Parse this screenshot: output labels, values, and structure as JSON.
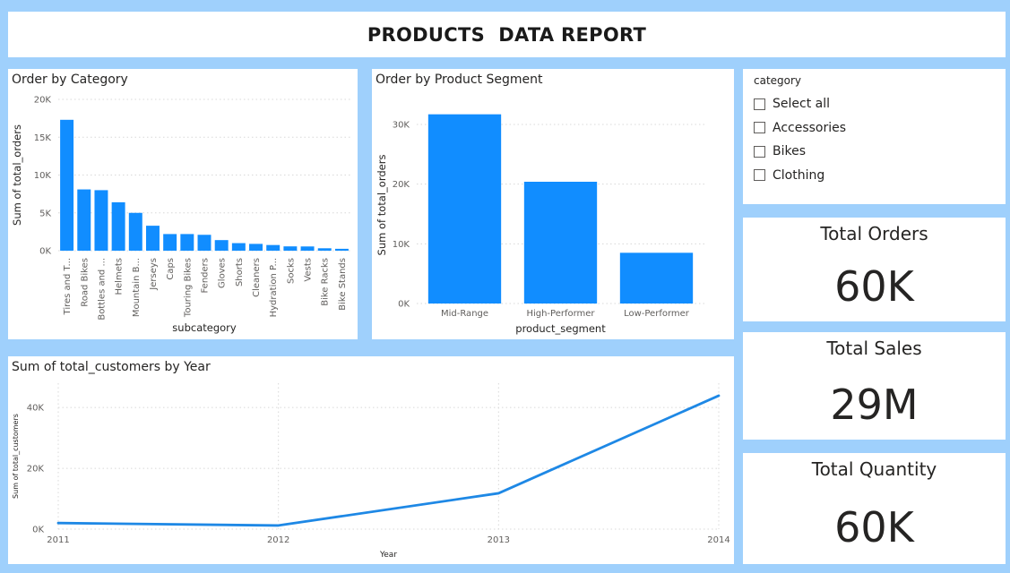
{
  "report": {
    "title": "PRODUCTS  DATA REPORT"
  },
  "colors": {
    "bar": "#118dff",
    "line": "#1e88e5",
    "background": "#9fd0fc"
  },
  "category_chart": {
    "title": "Order by Category",
    "ylabel": "Sum of total_orders",
    "xlabel": "subcategory",
    "chart_data": {
      "type": "bar",
      "title": "Order by Category",
      "xlabel": "subcategory",
      "ylabel": "Sum of total_orders",
      "categories": [
        "Tires and T...",
        "Road Bikes",
        "Bottles and ...",
        "Helmets",
        "Mountain B...",
        "Jerseys",
        "Caps",
        "Touring Bikes",
        "Fenders",
        "Gloves",
        "Shorts",
        "Cleaners",
        "Hydration P...",
        "Socks",
        "Vests",
        "Bike Racks",
        "Bike Stands"
      ],
      "values": [
        17300,
        8100,
        8000,
        6400,
        5000,
        3300,
        2200,
        2200,
        2100,
        1400,
        1000,
        900,
        750,
        570,
        560,
        320,
        250
      ],
      "ylim": [
        0,
        20000
      ],
      "yticks": [
        {
          "value": 0,
          "label": "0K"
        },
        {
          "value": 5000,
          "label": "5K"
        },
        {
          "value": 10000,
          "label": "10K"
        },
        {
          "value": 15000,
          "label": "15K"
        },
        {
          "value": 20000,
          "label": "20K"
        }
      ],
      "grid": true
    }
  },
  "segment_chart": {
    "title": "Order by Product Segment",
    "ylabel": "Sum of total_orders",
    "xlabel": "product_segment",
    "chart_data": {
      "type": "bar",
      "title": "Order by Product Segment",
      "xlabel": "product_segment",
      "ylabel": "Sum of total_orders",
      "categories": [
        "Mid-Range",
        "High-Performer",
        "Low-Performer"
      ],
      "values": [
        31700,
        20400,
        8500
      ],
      "ylim": [
        0,
        33000
      ],
      "yticks": [
        {
          "value": 0,
          "label": "0K"
        },
        {
          "value": 10000,
          "label": "10K"
        },
        {
          "value": 20000,
          "label": "20K"
        },
        {
          "value": 30000,
          "label": "30K"
        }
      ],
      "grid": true
    }
  },
  "customers_chart": {
    "title": "Sum of total_customers by Year",
    "ylabel": "Sum of total_customers",
    "xlabel": "Year",
    "chart_data": {
      "type": "line",
      "title": "Sum of total_customers by Year",
      "xlabel": "Year",
      "ylabel": "Sum of total_customers",
      "x": [
        "2011",
        "2012",
        "2013",
        "2014"
      ],
      "series": [
        {
          "values": [
            2000,
            1200,
            11800,
            43900
          ]
        }
      ],
      "ylim": [
        0,
        48000
      ],
      "yticks": [
        {
          "value": 0,
          "label": "0K"
        },
        {
          "value": 20000,
          "label": "20K"
        },
        {
          "value": 40000,
          "label": "40K"
        }
      ],
      "grid": true
    }
  },
  "slicer": {
    "header": "category",
    "options": [
      {
        "label": "Select all",
        "checked": false
      },
      {
        "label": "Accessories",
        "checked": false
      },
      {
        "label": "Bikes",
        "checked": false
      },
      {
        "label": "Clothing",
        "checked": false
      }
    ]
  },
  "cards": {
    "orders": {
      "title": "Total Orders",
      "value": "60K"
    },
    "sales": {
      "title": "Total Sales",
      "value": "29M"
    },
    "quantity": {
      "title": "Total Quantity",
      "value": "60K"
    }
  }
}
